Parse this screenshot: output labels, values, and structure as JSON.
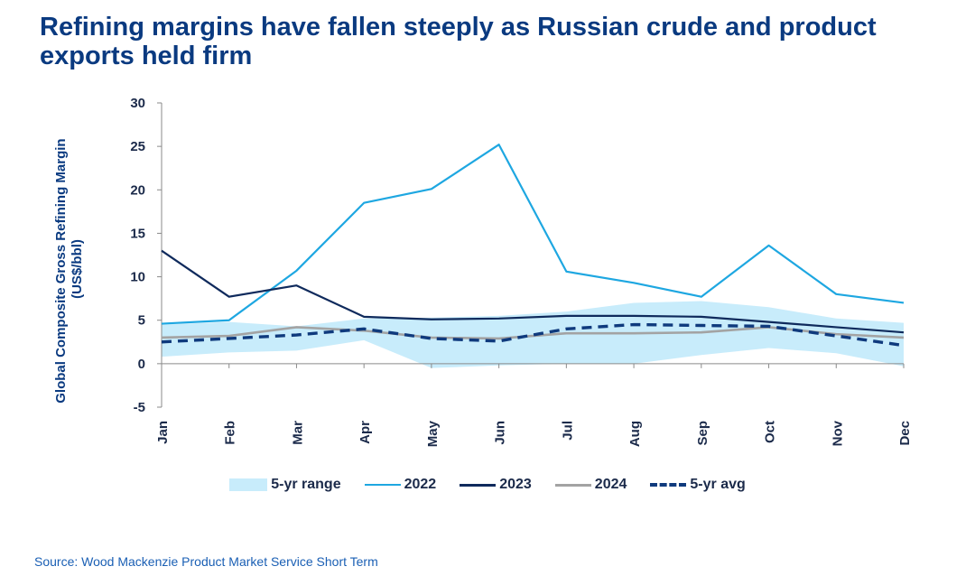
{
  "title": "Refining margins have fallen steeply as Russian crude and product exports held firm",
  "source": "Source: Wood Mackenzie Product Market Service Short Term",
  "colors": {
    "range": "#c8ecfb",
    "s2022": "#1ea7e1",
    "s2023": "#0f2a5c",
    "s2024": "#a3a3a3",
    "avg": "#0f3a7d",
    "text": "#1b2a4a",
    "title": "#0a3a80"
  },
  "chart_data": {
    "type": "line",
    "title": "Refining margins have fallen steeply as Russian crude and product exports held firm",
    "xlabel": "",
    "ylabel": "Global Composite Gross Refining Margin (US$/bbl)",
    "ylabel_lines": [
      "Global Composite Gross Refining Margin",
      "(US$/bbl)"
    ],
    "ylim": [
      -5,
      30
    ],
    "yticks": [
      30,
      25,
      20,
      15,
      10,
      5,
      0,
      -5
    ],
    "categories": [
      "Jan",
      "Feb",
      "Mar",
      "Apr",
      "May",
      "Jun",
      "Jul",
      "Aug",
      "Sep",
      "Oct",
      "Nov",
      "Dec"
    ],
    "range": {
      "name": "5-yr range",
      "low": [
        0.8,
        1.3,
        1.5,
        2.7,
        -0.5,
        -0.2,
        0.0,
        0.0,
        1.0,
        1.8,
        1.2,
        -0.3
      ],
      "high": [
        4.5,
        4.8,
        4.3,
        5.2,
        5.3,
        5.5,
        6.0,
        7.0,
        7.2,
        6.5,
        5.2,
        4.7
      ]
    },
    "series": [
      {
        "name": "2022",
        "values": [
          4.6,
          5.0,
          10.7,
          18.5,
          20.1,
          25.2,
          10.6,
          9.3,
          7.7,
          13.6,
          8.0,
          7.0
        ]
      },
      {
        "name": "2023",
        "values": [
          13.0,
          7.7,
          9.0,
          5.4,
          5.1,
          5.2,
          5.5,
          5.5,
          5.4,
          4.8,
          4.2,
          3.6
        ]
      },
      {
        "name": "2024",
        "values": [
          3.0,
          3.2,
          4.2,
          3.8,
          3.0,
          2.9,
          3.5,
          3.5,
          3.6,
          4.2,
          3.4,
          3.0
        ]
      },
      {
        "name": "5-yr avg",
        "values": [
          2.5,
          2.9,
          3.3,
          4.0,
          2.9,
          2.6,
          4.0,
          4.5,
          4.4,
          4.3,
          3.2,
          2.1
        ]
      }
    ],
    "grid": false,
    "legend_position": "bottom"
  },
  "legend": [
    {
      "key": "range",
      "label": "5-yr range"
    },
    {
      "key": "s2022",
      "label": "2022"
    },
    {
      "key": "s2023",
      "label": "2023"
    },
    {
      "key": "s2024",
      "label": "2024"
    },
    {
      "key": "avg",
      "label": "5-yr avg"
    }
  ]
}
